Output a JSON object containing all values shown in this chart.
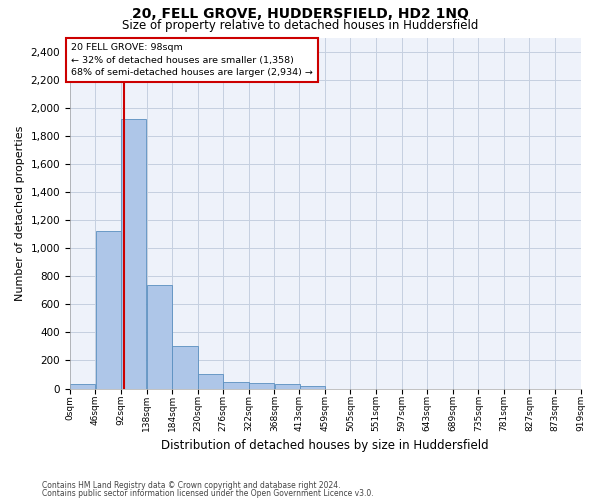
{
  "title": "20, FELL GROVE, HUDDERSFIELD, HD2 1NQ",
  "subtitle": "Size of property relative to detached houses in Huddersfield",
  "xlabel": "Distribution of detached houses by size in Huddersfield",
  "ylabel": "Number of detached properties",
  "footnote1": "Contains HM Land Registry data © Crown copyright and database right 2024.",
  "footnote2": "Contains public sector information licensed under the Open Government Licence v3.0.",
  "property_size": 98,
  "property_label": "20 FELL GROVE: 98sqm",
  "annotation_line1": "← 32% of detached houses are smaller (1,358)",
  "annotation_line2": "68% of semi-detached houses are larger (2,934) →",
  "bar_color": "#aec6e8",
  "bar_edge_color": "#5a8fc0",
  "vline_color": "#cc0000",
  "annotation_box_edgecolor": "#cc0000",
  "background_color": "#eef2fa",
  "grid_color": "#c5cfe0",
  "bin_edges": [
    0,
    46,
    92,
    138,
    184,
    230,
    276,
    322,
    368,
    413,
    459,
    505,
    551,
    597,
    643,
    689,
    735,
    781,
    827,
    873,
    919
  ],
  "bin_labels": [
    "0sqm",
    "46sqm",
    "92sqm",
    "138sqm",
    "184sqm",
    "230sqm",
    "276sqm",
    "322sqm",
    "368sqm",
    "413sqm",
    "459sqm",
    "505sqm",
    "551sqm",
    "597sqm",
    "643sqm",
    "689sqm",
    "735sqm",
    "781sqm",
    "827sqm",
    "873sqm",
    "919sqm"
  ],
  "bar_heights": [
    35,
    1120,
    1920,
    740,
    300,
    105,
    50,
    40,
    30,
    20,
    0,
    0,
    0,
    0,
    0,
    0,
    0,
    0,
    0,
    0
  ],
  "ylim": [
    0,
    2500
  ],
  "xlim": [
    0,
    919
  ],
  "yticks": [
    0,
    200,
    400,
    600,
    800,
    1000,
    1200,
    1400,
    1600,
    1800,
    2000,
    2200,
    2400
  ]
}
